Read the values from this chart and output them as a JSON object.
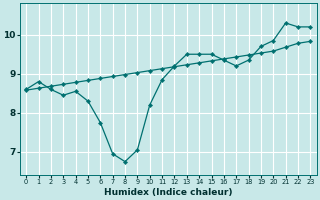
{
  "title": "",
  "xlabel": "Humidex (Indice chaleur)",
  "ylabel": "",
  "bg_color": "#c8e8e8",
  "grid_color": "#ffffff",
  "line_color": "#007070",
  "xlim": [
    -0.5,
    23.5
  ],
  "ylim": [
    6.4,
    10.8
  ],
  "xticks": [
    0,
    1,
    2,
    3,
    4,
    5,
    6,
    7,
    8,
    9,
    10,
    11,
    12,
    13,
    14,
    15,
    16,
    17,
    18,
    19,
    20,
    21,
    22,
    23
  ],
  "yticks": [
    7,
    8,
    9,
    10
  ],
  "series1_x": [
    0,
    1,
    2,
    3,
    4,
    5,
    6,
    7,
    8,
    9,
    10,
    11,
    12,
    13,
    14,
    15,
    16,
    17,
    18,
    19,
    20,
    21,
    22,
    23
  ],
  "series1_y": [
    8.6,
    8.8,
    8.6,
    8.45,
    8.55,
    8.3,
    7.75,
    6.95,
    6.75,
    7.05,
    8.2,
    8.85,
    9.2,
    9.5,
    9.5,
    9.5,
    9.35,
    9.2,
    9.35,
    9.7,
    9.85,
    10.3,
    10.2,
    10.2
  ],
  "series2_x": [
    0,
    1,
    2,
    3,
    4,
    5,
    6,
    7,
    8,
    9,
    10,
    11,
    12,
    13,
    14,
    15,
    16,
    17,
    18,
    19,
    20,
    21,
    22,
    23
  ],
  "series2_y": [
    8.58,
    8.63,
    8.68,
    8.73,
    8.78,
    8.83,
    8.88,
    8.93,
    8.98,
    9.03,
    9.08,
    9.13,
    9.18,
    9.23,
    9.28,
    9.33,
    9.38,
    9.43,
    9.48,
    9.53,
    9.58,
    9.68,
    9.78,
    9.83
  ],
  "xlabel_fontsize": 6.5,
  "xlabel_fontweight": "bold",
  "xtick_fontsize": 4.8,
  "ytick_fontsize": 6.5,
  "marker_size": 2.2,
  "line_width": 0.9
}
